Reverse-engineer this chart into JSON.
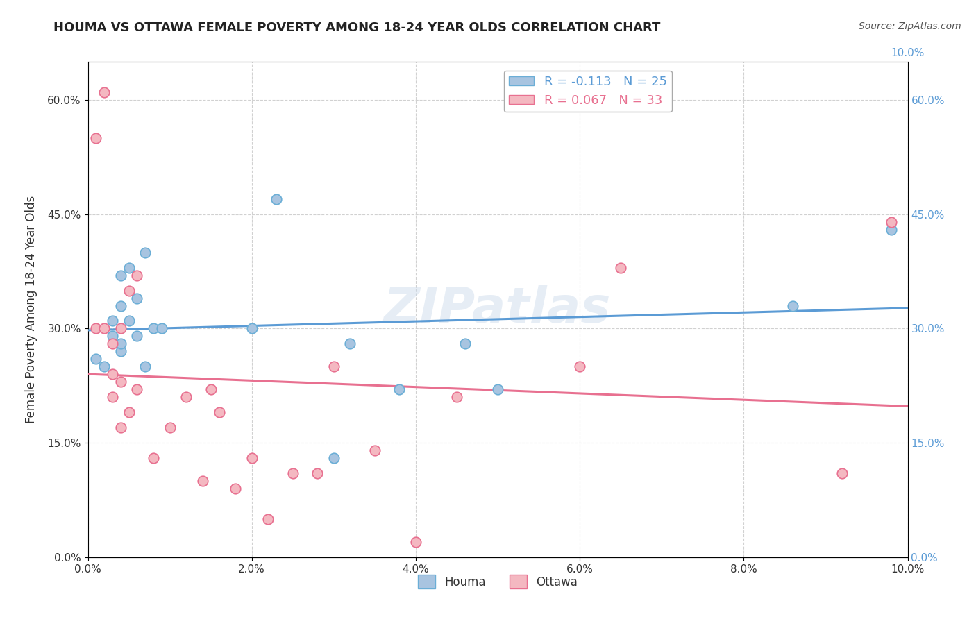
{
  "title": "HOUMA VS OTTAWA FEMALE POVERTY AMONG 18-24 YEAR OLDS CORRELATION CHART",
  "source": "Source: ZipAtlas.com",
  "ylabel": "Female Poverty Among 18-24 Year Olds",
  "xlim": [
    0.0,
    0.1
  ],
  "ylim": [
    0.0,
    0.65
  ],
  "x_ticks": [
    0.0,
    0.02,
    0.04,
    0.06,
    0.08,
    0.1
  ],
  "x_tick_labels": [
    "0.0%",
    "2.0%",
    "4.0%",
    "6.0%",
    "8.0%",
    "10.0%"
  ],
  "y_ticks": [
    0.0,
    0.15,
    0.3,
    0.45,
    0.6
  ],
  "y_tick_labels": [
    "0.0%",
    "15.0%",
    "30.0%",
    "45.0%",
    "60.0%"
  ],
  "right_y_tick_labels": [
    "0.0%",
    "15.0%",
    "30.0%",
    "45.0%",
    "60.0%"
  ],
  "right_x_tick_labels": [
    "0.0%",
    "10.0%"
  ],
  "houma_color": "#a8c4e0",
  "houma_edge_color": "#6baed6",
  "ottawa_color": "#f4b8c1",
  "ottawa_edge_color": "#e87090",
  "houma_line_color": "#5b9bd5",
  "ottawa_line_color": "#e87090",
  "houma_R": -0.113,
  "houma_N": 25,
  "ottawa_R": 0.067,
  "ottawa_N": 33,
  "watermark": "ZIPatlas",
  "background_color": "#ffffff",
  "grid_color": "#cccccc",
  "houma_x": [
    0.001,
    0.002,
    0.003,
    0.003,
    0.004,
    0.004,
    0.004,
    0.004,
    0.005,
    0.005,
    0.006,
    0.006,
    0.007,
    0.007,
    0.008,
    0.009,
    0.02,
    0.023,
    0.03,
    0.032,
    0.038,
    0.046,
    0.086,
    0.098,
    0.05
  ],
  "houma_y": [
    0.26,
    0.25,
    0.29,
    0.31,
    0.27,
    0.28,
    0.33,
    0.37,
    0.31,
    0.38,
    0.29,
    0.34,
    0.25,
    0.4,
    0.3,
    0.3,
    0.3,
    0.47,
    0.13,
    0.28,
    0.22,
    0.28,
    0.33,
    0.43,
    0.22
  ],
  "ottawa_x": [
    0.001,
    0.001,
    0.002,
    0.002,
    0.003,
    0.003,
    0.003,
    0.004,
    0.004,
    0.004,
    0.005,
    0.005,
    0.006,
    0.006,
    0.008,
    0.01,
    0.012,
    0.014,
    0.015,
    0.016,
    0.018,
    0.02,
    0.022,
    0.025,
    0.028,
    0.03,
    0.035,
    0.04,
    0.045,
    0.06,
    0.065,
    0.092,
    0.098
  ],
  "ottawa_y": [
    0.3,
    0.55,
    0.3,
    0.61,
    0.21,
    0.24,
    0.28,
    0.17,
    0.23,
    0.3,
    0.19,
    0.35,
    0.22,
    0.37,
    0.13,
    0.17,
    0.21,
    0.1,
    0.22,
    0.19,
    0.09,
    0.13,
    0.05,
    0.11,
    0.11,
    0.25,
    0.14,
    0.02,
    0.21,
    0.25,
    0.38,
    0.11,
    0.44
  ]
}
